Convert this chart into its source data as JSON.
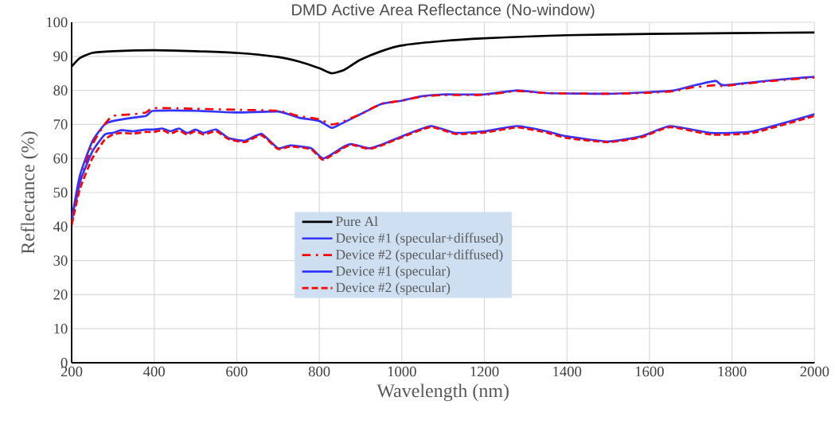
{
  "chart_data": {
    "type": "line",
    "title": "DMD Active Area Reflectance (No-window)",
    "xlabel": "Wavelength (nm)",
    "ylabel": "Reflectance (%)",
    "xlim": [
      200,
      2000
    ],
    "ylim": [
      0,
      100
    ],
    "xticks": [
      200,
      400,
      600,
      800,
      1000,
      1200,
      1400,
      1600,
      1800,
      2000
    ],
    "yticks": [
      0,
      10,
      20,
      30,
      40,
      50,
      60,
      70,
      80,
      90,
      100
    ],
    "grid": true,
    "legend": "center",
    "series": [
      {
        "name": "Pure Al",
        "color": "#000000",
        "line_style": "solid",
        "x": [
          200,
          220,
          250,
          300,
          400,
          500,
          600,
          700,
          750,
          800,
          830,
          860,
          880,
          900,
          950,
          1000,
          1100,
          1200,
          1300,
          1400,
          1600,
          1800,
          2000
        ],
        "values": [
          87,
          89.5,
          91,
          91.5,
          91.8,
          91.5,
          91,
          89.8,
          88.5,
          86.5,
          85,
          86,
          87.5,
          89,
          91.5,
          93.2,
          94.5,
          95.3,
          95.8,
          96.2,
          96.6,
          96.8,
          97
        ]
      },
      {
        "name": "Device #1 (specular+diffused)",
        "color": "#3333ff",
        "line_style": "solid",
        "x": [
          200,
          220,
          250,
          280,
          300,
          350,
          380,
          390,
          400,
          500,
          600,
          700,
          750,
          800,
          830,
          850,
          900,
          950,
          1000,
          1050,
          1100,
          1200,
          1280,
          1350,
          1500,
          1600,
          1660,
          1700,
          1760,
          1780,
          1900,
          2000
        ],
        "values": [
          42,
          55,
          65,
          70,
          71,
          72,
          72.5,
          73.5,
          74,
          74,
          73.5,
          73.8,
          72,
          71,
          69,
          70,
          73,
          76,
          77,
          78.3,
          78.8,
          78.8,
          80,
          79.2,
          79,
          79.5,
          80,
          81.2,
          82.8,
          81.5,
          83,
          84
        ]
      },
      {
        "name": "Device #2 (specular+diffused)",
        "color": "#ff0000",
        "line_style": "dashdot",
        "x": [
          200,
          220,
          250,
          280,
          300,
          350,
          380,
          400,
          500,
          600,
          700,
          750,
          800,
          830,
          850,
          900,
          950,
          1000,
          1050,
          1100,
          1200,
          1280,
          1350,
          1500,
          1600,
          1660,
          1700,
          1760,
          1780,
          1900,
          2000
        ],
        "values": [
          40.5,
          53,
          64,
          70,
          72.5,
          73,
          73.5,
          74.8,
          74.6,
          74.3,
          74,
          72.5,
          71.5,
          70,
          70.5,
          73,
          76,
          77,
          78.2,
          78.6,
          78.7,
          79.8,
          79.2,
          79,
          79.3,
          79.8,
          80.8,
          81.5,
          81.3,
          82.8,
          83.8
        ]
      },
      {
        "name": "Device #1 (specular)",
        "color": "#3333ff",
        "line_style": "solid",
        "x": [
          200,
          220,
          250,
          280,
          300,
          320,
          350,
          380,
          400,
          420,
          440,
          460,
          480,
          500,
          520,
          550,
          580,
          620,
          660,
          700,
          730,
          780,
          810,
          860,
          880,
          920,
          950,
          1000,
          1070,
          1130,
          1200,
          1280,
          1350,
          1400,
          1500,
          1580,
          1650,
          1750,
          1850,
          2000
        ],
        "values": [
          42,
          53,
          62,
          67,
          67.5,
          68.3,
          68,
          68.5,
          68.5,
          68.8,
          68,
          68.8,
          67.5,
          68.5,
          67.5,
          68.5,
          66,
          65.2,
          67.2,
          63,
          63.8,
          63,
          60,
          63.5,
          64.2,
          63,
          64,
          66.5,
          69.5,
          67.5,
          68,
          69.5,
          68,
          66.5,
          65,
          66.5,
          69.5,
          67.5,
          68,
          73
        ]
      },
      {
        "name": "Device #2 (specular)",
        "color": "#ff0000",
        "line_style": "dashed",
        "x": [
          200,
          220,
          250,
          280,
          300,
          320,
          350,
          380,
          400,
          420,
          440,
          460,
          480,
          500,
          520,
          550,
          580,
          620,
          660,
          700,
          730,
          780,
          810,
          860,
          880,
          920,
          950,
          1000,
          1070,
          1130,
          1200,
          1280,
          1350,
          1400,
          1500,
          1580,
          1650,
          1750,
          1850,
          2000
        ],
        "values": [
          40.5,
          51,
          60,
          65.5,
          67,
          67.5,
          67.3,
          67.8,
          67.8,
          68.3,
          67.3,
          68.2,
          67,
          68,
          67,
          68,
          65.7,
          64.8,
          66.8,
          62.8,
          63.5,
          62.7,
          59.6,
          63.2,
          64,
          62.8,
          63.8,
          66.2,
          69.2,
          67.2,
          67.6,
          69.1,
          67.6,
          66,
          64.8,
          66.2,
          69.2,
          67,
          67.5,
          72.5
        ]
      }
    ]
  }
}
